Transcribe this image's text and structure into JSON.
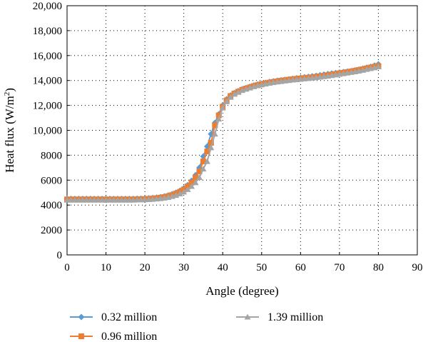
{
  "chart_data": {
    "type": "line",
    "title": "",
    "xlabel": "Angle (degree)",
    "ylabel": "Heat flux (W/m",
    "ylabel_superscript": "2",
    "ylabel_close": ")",
    "xlim": [
      0,
      90
    ],
    "ylim": [
      0,
      20000
    ],
    "x_ticks": [
      0,
      10,
      20,
      30,
      40,
      50,
      60,
      70,
      80,
      90
    ],
    "x_tick_labels": [
      "0",
      "10",
      "20",
      "30",
      "40",
      "50",
      "60",
      "70",
      "80",
      "90"
    ],
    "y_ticks": [
      0,
      2000,
      4000,
      6000,
      8000,
      10000,
      12000,
      14000,
      16000,
      18000,
      20000
    ],
    "y_tick_labels": [
      "0",
      "2000",
      "4000",
      "6000",
      "8000",
      "10,000",
      "12,000",
      "14,000",
      "16,000",
      "18,000",
      "20,000"
    ],
    "grid": true,
    "legend_position": "bottom",
    "series": [
      {
        "name": "0.32 million",
        "color": "#5b9bd5",
        "marker": "diamond",
        "x": [
          0,
          1,
          2,
          3,
          4,
          5,
          6,
          7,
          8,
          9,
          10,
          11,
          12,
          13,
          14,
          15,
          16,
          17,
          18,
          19,
          20,
          21,
          22,
          23,
          24,
          25,
          26,
          27,
          28,
          29,
          30,
          31,
          32,
          33,
          34,
          35,
          36,
          37,
          38,
          39,
          40,
          41,
          42,
          43,
          44,
          45,
          46,
          47,
          48,
          49,
          50,
          51,
          52,
          53,
          54,
          55,
          56,
          57,
          58,
          59,
          60,
          61,
          62,
          63,
          64,
          65,
          66,
          67,
          68,
          69,
          70,
          71,
          72,
          73,
          74,
          75,
          76,
          77,
          78,
          79,
          80
        ],
        "y": [
          4500,
          4500,
          4500,
          4500,
          4500,
          4500,
          4500,
          4500,
          4500,
          4500,
          4500,
          4500,
          4500,
          4500,
          4500,
          4500,
          4500,
          4500,
          4510,
          4520,
          4530,
          4550,
          4570,
          4600,
          4640,
          4700,
          4780,
          4880,
          5000,
          5150,
          5350,
          5600,
          5950,
          6400,
          7000,
          7900,
          8700,
          9700,
          10600,
          11300,
          12000,
          12500,
          12800,
          13000,
          13150,
          13300,
          13400,
          13500,
          13600,
          13680,
          13750,
          13820,
          13880,
          13930,
          13980,
          14020,
          14060,
          14100,
          14140,
          14180,
          14220,
          14260,
          14300,
          14340,
          14380,
          14430,
          14480,
          14520,
          14560,
          14600,
          14640,
          14680,
          14720,
          14760,
          14820,
          14880,
          14950,
          15030,
          15100,
          15200,
          15300
        ]
      },
      {
        "name": "0.96 million",
        "color": "#ed7d31",
        "marker": "square",
        "x": [
          0,
          1,
          2,
          3,
          4,
          5,
          6,
          7,
          8,
          9,
          10,
          11,
          12,
          13,
          14,
          15,
          16,
          17,
          18,
          19,
          20,
          21,
          22,
          23,
          24,
          25,
          26,
          27,
          28,
          29,
          30,
          31,
          32,
          33,
          34,
          35,
          36,
          37,
          38,
          39,
          40,
          41,
          42,
          43,
          44,
          45,
          46,
          47,
          48,
          49,
          50,
          51,
          52,
          53,
          54,
          55,
          56,
          57,
          58,
          59,
          60,
          61,
          62,
          63,
          64,
          65,
          66,
          67,
          68,
          69,
          70,
          71,
          72,
          73,
          74,
          75,
          76,
          77,
          78,
          79,
          80
        ],
        "y": [
          4450,
          4450,
          4450,
          4450,
          4450,
          4450,
          4450,
          4450,
          4450,
          4450,
          4450,
          4450,
          4450,
          4450,
          4450,
          4450,
          4450,
          4450,
          4460,
          4470,
          4480,
          4500,
          4520,
          4550,
          4590,
          4640,
          4710,
          4800,
          4920,
          5060,
          5250,
          5500,
          5800,
          6200,
          6700,
          7500,
          8300,
          9000,
          10400,
          11200,
          11900,
          12400,
          12750,
          12950,
          13100,
          13250,
          13350,
          13450,
          13550,
          13630,
          13700,
          13770,
          13830,
          13880,
          13930,
          13980,
          14020,
          14060,
          14100,
          14130,
          14160,
          14190,
          14220,
          14250,
          14290,
          14330,
          14370,
          14420,
          14470,
          14520,
          14570,
          14620,
          14670,
          14720,
          14780,
          14840,
          14900,
          14970,
          15040,
          15100,
          15150
        ]
      },
      {
        "name": "1.39 million",
        "color": "#a5a5a5",
        "marker": "triangle",
        "x": [
          0,
          1,
          2,
          3,
          4,
          5,
          6,
          7,
          8,
          9,
          10,
          11,
          12,
          13,
          14,
          15,
          16,
          17,
          18,
          19,
          20,
          21,
          22,
          23,
          24,
          25,
          26,
          27,
          28,
          29,
          30,
          31,
          32,
          33,
          34,
          35,
          36,
          37,
          38,
          39,
          40,
          41,
          42,
          43,
          44,
          45,
          46,
          47,
          48,
          49,
          50,
          51,
          52,
          53,
          54,
          55,
          56,
          57,
          58,
          59,
          60,
          61,
          62,
          63,
          64,
          65,
          66,
          67,
          68,
          69,
          70,
          71,
          72,
          73,
          74,
          75,
          76,
          77,
          78,
          79,
          80
        ],
        "y": [
          4400,
          4400,
          4400,
          4400,
          4400,
          4400,
          4400,
          4400,
          4400,
          4400,
          4400,
          4400,
          4400,
          4400,
          4400,
          4400,
          4400,
          4400,
          4410,
          4420,
          4430,
          4440,
          4460,
          4490,
          4520,
          4560,
          4610,
          4690,
          4780,
          4900,
          5050,
          5250,
          5500,
          5800,
          6200,
          6900,
          7500,
          8600,
          9700,
          10900,
          11800,
          12300,
          12650,
          12900,
          13050,
          13200,
          13300,
          13400,
          13500,
          13580,
          13650,
          13720,
          13780,
          13830,
          13880,
          13920,
          13960,
          14000,
          14040,
          14070,
          14100,
          14130,
          14160,
          14190,
          14230,
          14270,
          14310,
          14350,
          14400,
          14450,
          14500,
          14550,
          14600,
          14650,
          14700,
          14760,
          14820,
          14890,
          14960,
          15020,
          15100
        ]
      }
    ]
  }
}
